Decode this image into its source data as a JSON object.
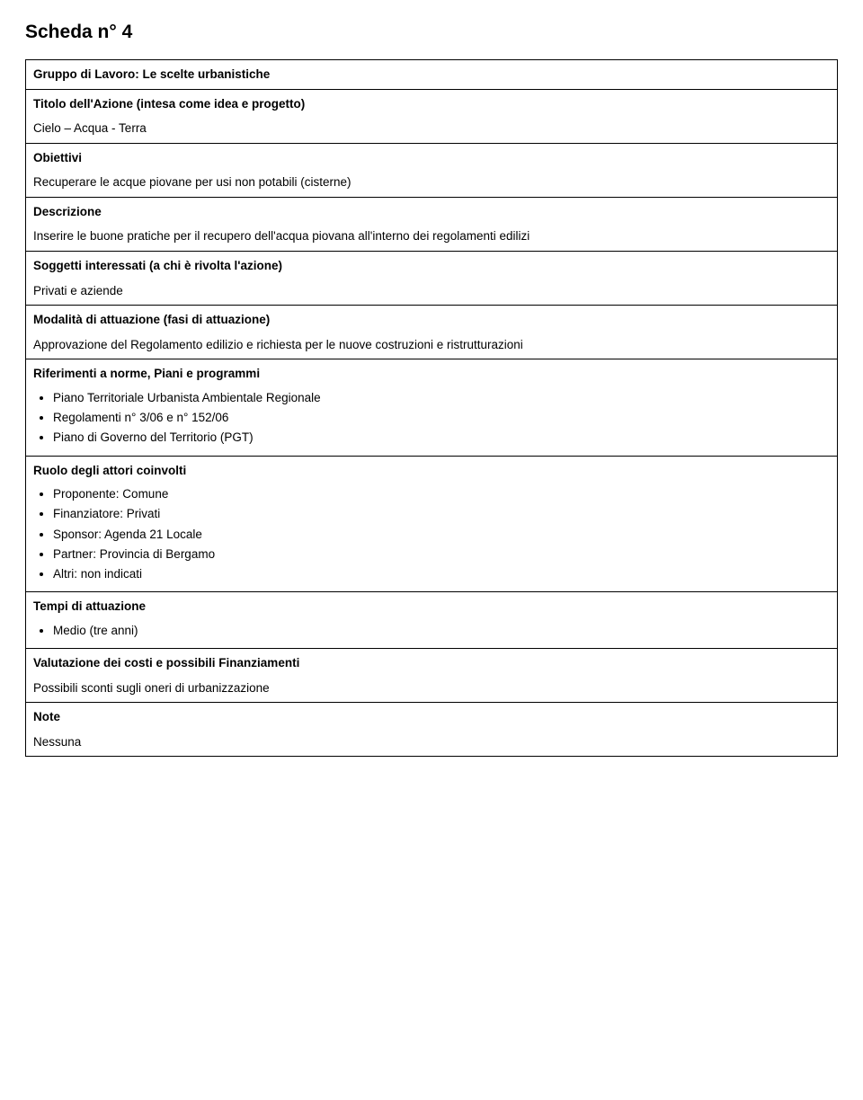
{
  "title": "Scheda n° 4",
  "rows": {
    "gruppo": {
      "heading": "Gruppo di Lavoro: Le scelte urbanistiche"
    },
    "titolo_azione": {
      "heading": "Titolo dell'Azione (intesa come idea e progetto)",
      "body": "Cielo – Acqua - Terra"
    },
    "obiettivi": {
      "heading": "Obiettivi",
      "body": "Recuperare le acque piovane per usi non potabili (cisterne)"
    },
    "descrizione": {
      "heading": "Descrizione",
      "body": "Inserire le buone pratiche per il recupero dell'acqua piovana all'interno dei regolamenti edilizi"
    },
    "soggetti": {
      "heading": "Soggetti interessati (a chi è rivolta l'azione)",
      "body": "Privati e aziende"
    },
    "modalita": {
      "heading": "Modalità di attuazione (fasi di attuazione)",
      "body": "Approvazione del Regolamento edilizio e richiesta per le nuove costruzioni e ristrutturazioni"
    },
    "riferimenti": {
      "heading": "Riferimenti a norme, Piani e programmi",
      "items": [
        "Piano Territoriale Urbanista Ambientale Regionale",
        "Regolamenti n° 3/06 e n° 152/06",
        "Piano di Governo del Territorio (PGT)"
      ]
    },
    "ruolo": {
      "heading": "Ruolo degli attori coinvolti",
      "items": [
        "Proponente: Comune",
        "Finanziatore: Privati",
        "Sponsor: Agenda 21 Locale",
        "Partner: Provincia di Bergamo",
        "Altri: non indicati"
      ]
    },
    "tempi": {
      "heading": "Tempi di attuazione",
      "items": [
        "Medio (tre anni)"
      ]
    },
    "valutazione": {
      "heading": "Valutazione dei costi e possibili Finanziamenti",
      "body": "Possibili sconti sugli oneri di urbanizzazione"
    },
    "note": {
      "heading": "Note",
      "body": "Nessuna"
    }
  }
}
